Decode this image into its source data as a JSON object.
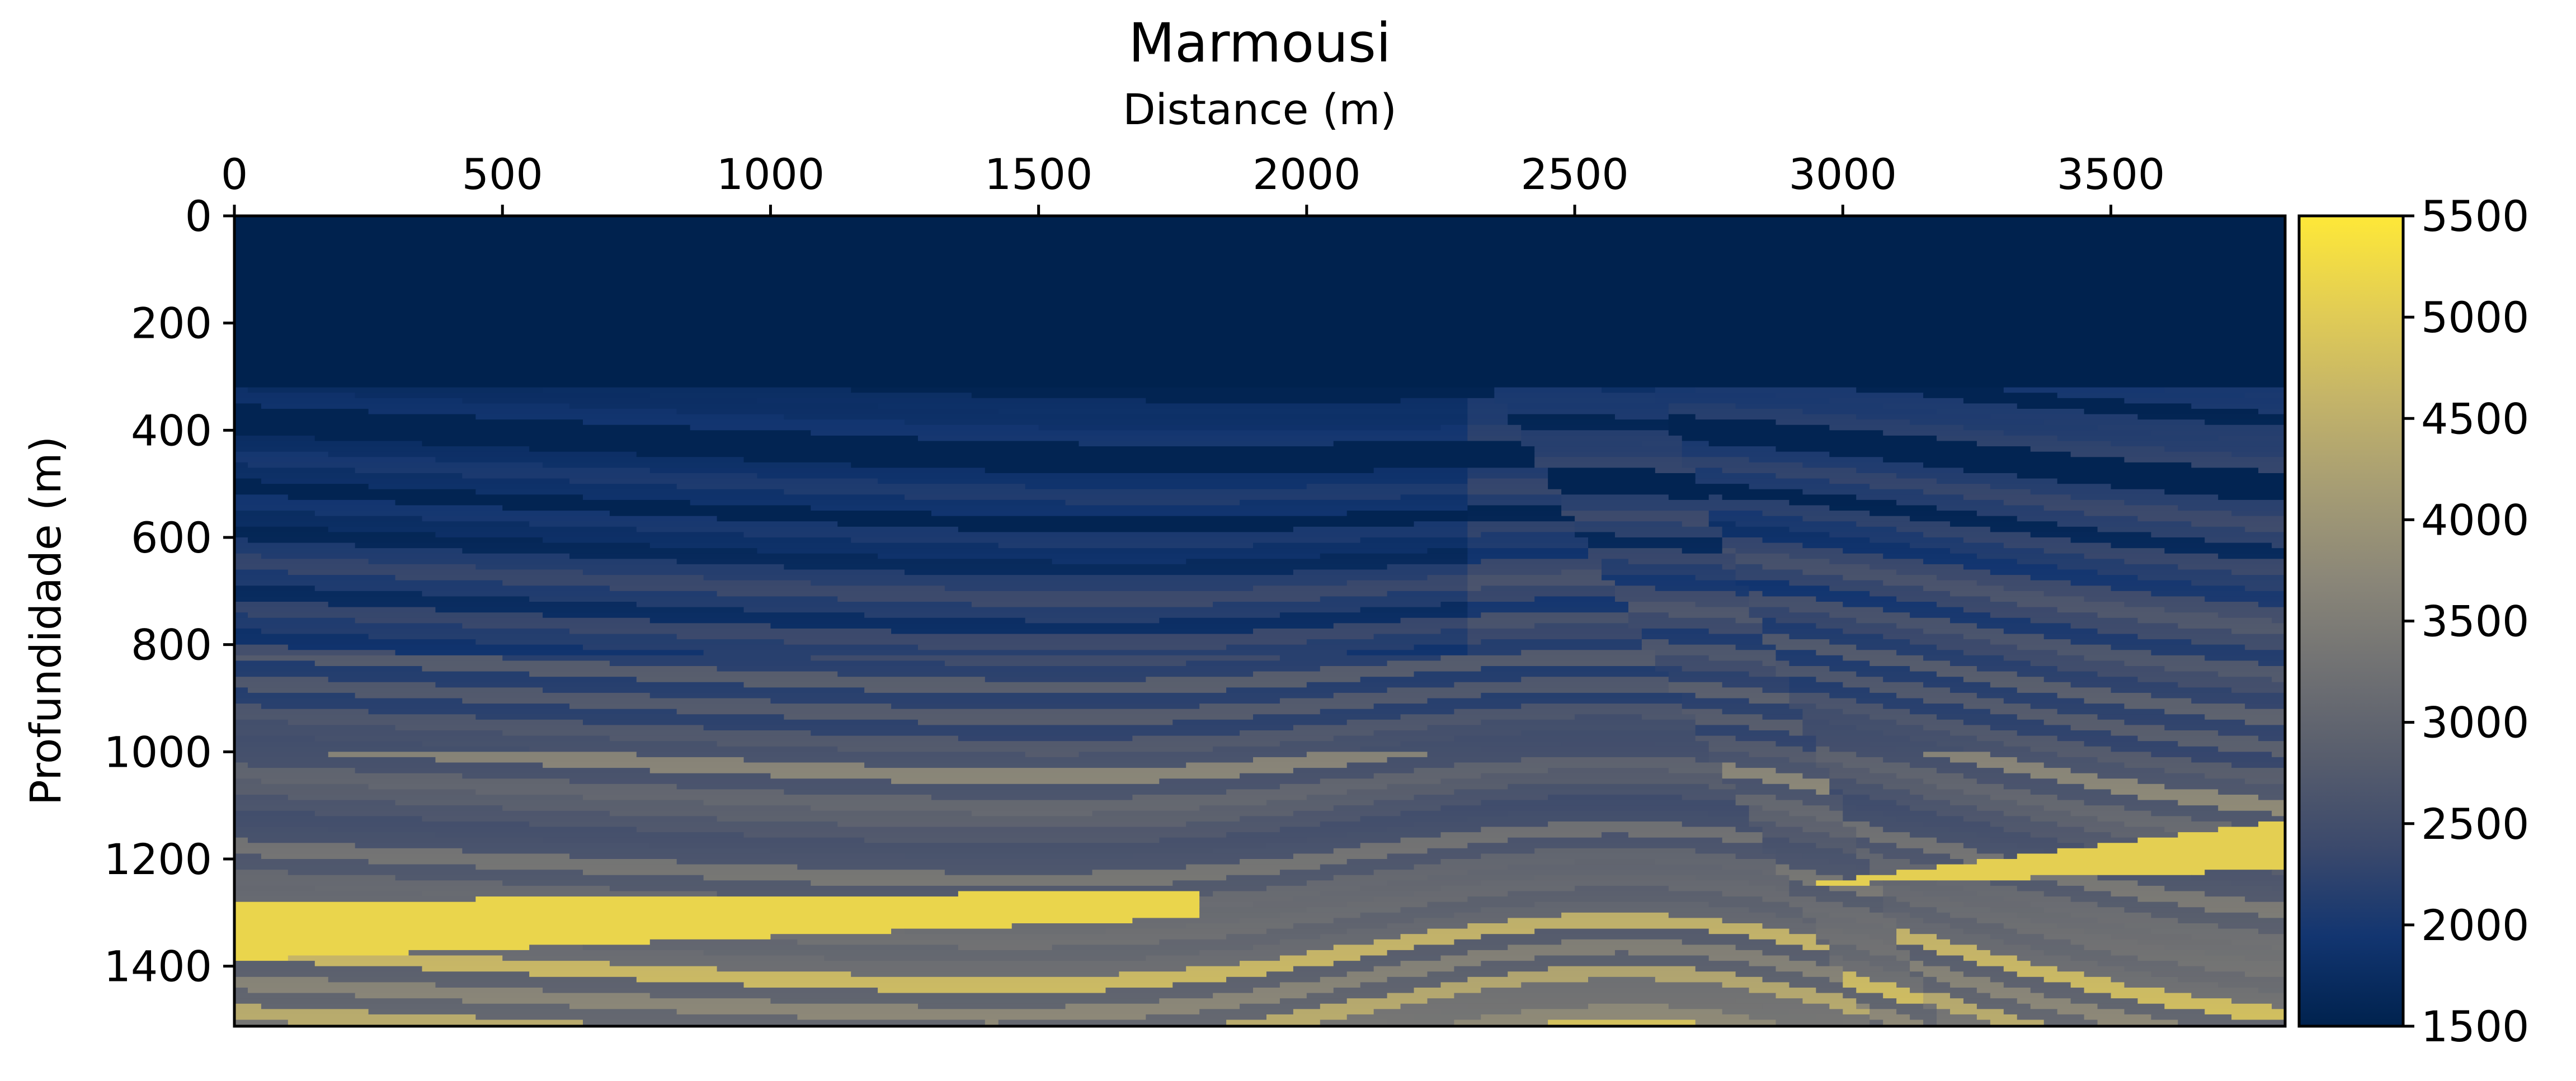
{
  "chart_data": {
    "type": "heatmap",
    "title": "Marmousi",
    "xlabel": "Distance (m)",
    "ylabel": "Profundidade (m)",
    "xlim": [
      0,
      3825
    ],
    "ylim": [
      1512,
      0
    ],
    "x_axis_position": "top",
    "x_ticks": [
      0,
      500,
      1000,
      1500,
      2000,
      2500,
      3000,
      3500
    ],
    "y_ticks": [
      0,
      200,
      400,
      600,
      800,
      1000,
      1200,
      1400
    ],
    "grid": false,
    "colormap": "cividis",
    "colorbar": {
      "range": [
        1500,
        5500
      ],
      "ticks": [
        1500,
        2000,
        2500,
        3000,
        3500,
        4000,
        4500,
        5000,
        5500
      ],
      "placement": "right"
    },
    "features": [
      {
        "type": "water",
        "value": 1500,
        "depth_bottom": 325
      },
      {
        "type": "fault",
        "x_top": 2650,
        "x_bottom": 2950,
        "z_top": 325,
        "z_bottom": 1000
      },
      {
        "type": "fault",
        "x_top": 2350,
        "x_bottom": 2900,
        "z_top": 325,
        "z_bottom": 1250
      },
      {
        "type": "salt_wedge",
        "value": 5200,
        "x_tip": 1800,
        "z_top_left": 1280,
        "z_bottom_left": 1390
      },
      {
        "type": "salt_wedge",
        "value": 5100,
        "x_start": 2900,
        "z_start": 1250,
        "z_top_right": 1130,
        "z_bottom_right": 1220
      }
    ]
  },
  "colors": {
    "colormap_stops": [
      "#00224e",
      "#123570",
      "#3b496c",
      "#575d6d",
      "#707173",
      "#8a8678",
      "#a59c74",
      "#c3b369",
      "#e1cc55",
      "#fee838"
    ]
  }
}
